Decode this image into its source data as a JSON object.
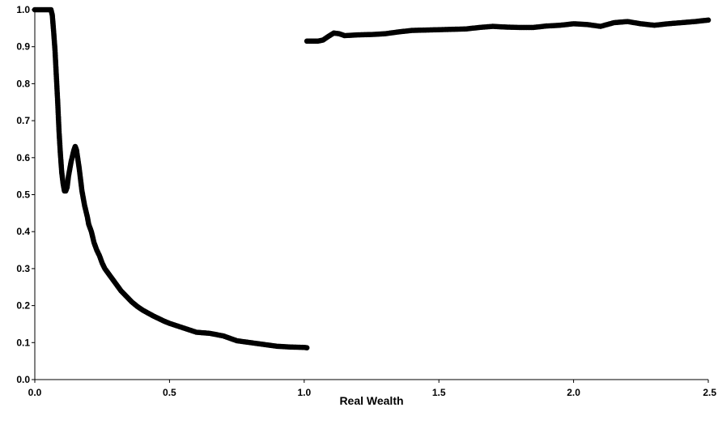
{
  "chart_data": {
    "type": "scatter",
    "title": "",
    "xlabel": "Real Wealth",
    "ylabel": "",
    "xlim": [
      0,
      2.5
    ],
    "ylim": [
      0,
      1.0
    ],
    "xticks": [
      "0.0",
      "0.5",
      "1.0",
      "1.5",
      "2.0",
      "2.5"
    ],
    "yticks": [
      "0.0",
      "0.1",
      "0.2",
      "0.3",
      "0.4",
      "0.5",
      "0.6",
      "0.7",
      "0.8",
      "0.9",
      "1.0"
    ],
    "grid": false,
    "legend": "none",
    "marker_color": "#000000",
    "series": [
      {
        "x": [
          0.0,
          0.01,
          0.02,
          0.03,
          0.04,
          0.05,
          0.06,
          0.065,
          0.07,
          0.075,
          0.08,
          0.085,
          0.09,
          0.095,
          0.1,
          0.105,
          0.11,
          0.115,
          0.12,
          0.125,
          0.13,
          0.135,
          0.14,
          0.145,
          0.15,
          0.155,
          0.16,
          0.165,
          0.17,
          0.175,
          0.18,
          0.185,
          0.19,
          0.195,
          0.2,
          0.21,
          0.22,
          0.23,
          0.24,
          0.25,
          0.26,
          0.27,
          0.28,
          0.29,
          0.3,
          0.32,
          0.34,
          0.36,
          0.38,
          0.4,
          0.42,
          0.44,
          0.46,
          0.48,
          0.5,
          0.55,
          0.6,
          0.65,
          0.7,
          0.75,
          0.8,
          0.85,
          0.9,
          0.95,
          1.0,
          1.01
        ],
        "y": [
          1.0,
          1.0,
          1.0,
          1.0,
          1.0,
          1.0,
          1.0,
          0.985,
          0.94,
          0.89,
          0.82,
          0.75,
          0.67,
          0.61,
          0.56,
          0.53,
          0.51,
          0.51,
          0.52,
          0.55,
          0.57,
          0.59,
          0.605,
          0.62,
          0.63,
          0.62,
          0.595,
          0.57,
          0.54,
          0.51,
          0.49,
          0.47,
          0.455,
          0.44,
          0.42,
          0.4,
          0.37,
          0.35,
          0.335,
          0.315,
          0.3,
          0.29,
          0.28,
          0.27,
          0.26,
          0.24,
          0.225,
          0.21,
          0.198,
          0.188,
          0.18,
          0.172,
          0.165,
          0.158,
          0.152,
          0.14,
          0.128,
          0.125,
          0.118,
          0.105,
          0.1,
          0.095,
          0.09,
          0.088,
          0.087,
          0.086
        ]
      },
      {
        "x": [
          1.01,
          1.03,
          1.05,
          1.07,
          1.09,
          1.11,
          1.13,
          1.15,
          1.2,
          1.25,
          1.3,
          1.35,
          1.4,
          1.45,
          1.5,
          1.55,
          1.6,
          1.65,
          1.7,
          1.75,
          1.8,
          1.85,
          1.9,
          1.95,
          2.0,
          2.05,
          2.1,
          2.15,
          2.2,
          2.25,
          2.3,
          2.35,
          2.4,
          2.45,
          2.5
        ],
        "y": [
          0.915,
          0.915,
          0.915,
          0.918,
          0.928,
          0.937,
          0.935,
          0.93,
          0.932,
          0.933,
          0.935,
          0.94,
          0.944,
          0.945,
          0.946,
          0.947,
          0.948,
          0.952,
          0.955,
          0.953,
          0.952,
          0.952,
          0.956,
          0.958,
          0.962,
          0.96,
          0.955,
          0.965,
          0.968,
          0.962,
          0.958,
          0.962,
          0.965,
          0.968,
          0.972
        ]
      }
    ]
  }
}
